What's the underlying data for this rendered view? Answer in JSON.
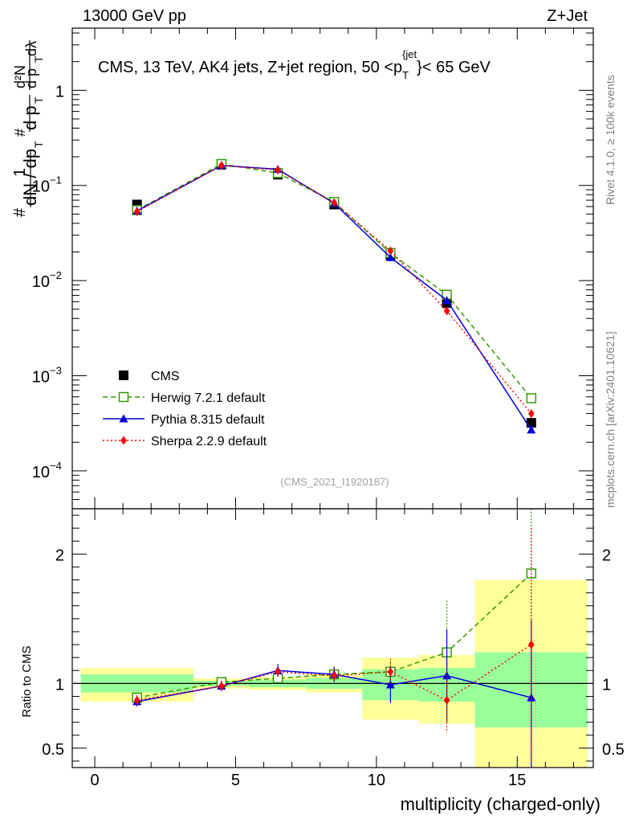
{
  "header": {
    "left": "13000 GeV pp",
    "right": "Z+Jet",
    "side_top": "Rivet 4.1.0, ≥ 100k events",
    "side_bottom": "mcplots.cern.ch [arXiv:2401.10621]"
  },
  "chart_data": {
    "type": "line",
    "title": "CMS, 13 TeV, AK4 jets, Z+jet region, 50 <p_T^{jet}< 65 GeV",
    "title_parts": {
      "main": "CMS, 13 TeV, AK4 jets, Z+jet region, 50 <p",
      "sub": "T",
      "sup": "{jet",
      "tail": "}< 65 GeV"
    },
    "analysis_id": "(CMS_2021_I1920187)",
    "xlabel": "multiplicity (charged-only)",
    "ylabel_main": "1/N dN/dp_T d²N/dp_T dλ",
    "ylabel_ratio": "Ratio to CMS",
    "xlim": [
      -0.8,
      17.7
    ],
    "ylim_main": [
      4e-05,
      4.5
    ],
    "ylim_ratio": [
      0.35,
      2.35
    ],
    "x_ticks": [
      {
        "value": 0,
        "label": "0"
      },
      {
        "value": 5,
        "label": "5"
      },
      {
        "value": 10,
        "label": "10"
      },
      {
        "value": 15,
        "label": "15"
      }
    ],
    "y_ticks_main": [
      {
        "value": 1,
        "label": "1"
      },
      {
        "value": 0.1,
        "label": "10",
        "exp": "−1"
      },
      {
        "value": 0.01,
        "label": "10",
        "exp": "−2"
      },
      {
        "value": 0.001,
        "label": "10",
        "exp": "−3"
      },
      {
        "value": 0.0001,
        "label": "10",
        "exp": "−4"
      }
    ],
    "y_ticks_ratio": [
      {
        "value": 0.5,
        "label": "0.5"
      },
      {
        "value": 1,
        "label": "1"
      },
      {
        "value": 2,
        "label": "2"
      }
    ],
    "bins": [
      {
        "lo": -0.5,
        "hi": 3.5,
        "x": 1.5
      },
      {
        "lo": 3.5,
        "hi": 5.5,
        "x": 4.5
      },
      {
        "lo": 5.5,
        "hi": 7.5,
        "x": 6.5
      },
      {
        "lo": 7.5,
        "hi": 9.5,
        "x": 8.5
      },
      {
        "lo": 9.5,
        "hi": 11.5,
        "x": 10.5
      },
      {
        "lo": 11.5,
        "hi": 13.5,
        "x": 12.5
      },
      {
        "lo": 13.5,
        "hi": 17.5,
        "x": 15.5
      }
    ],
    "band_green": [
      [
        0.93,
        1.07
      ],
      [
        0.98,
        1.02
      ],
      [
        0.97,
        1.03
      ],
      [
        0.96,
        1.04
      ],
      [
        0.87,
        1.11
      ],
      [
        0.86,
        1.12
      ],
      [
        0.66,
        1.24
      ]
    ],
    "band_yellow": [
      [
        0.86,
        1.12
      ],
      [
        0.96,
        1.04
      ],
      [
        0.95,
        1.05
      ],
      [
        0.93,
        1.07
      ],
      [
        0.72,
        1.2
      ],
      [
        0.69,
        1.22
      ],
      [
        0.3,
        1.8
      ]
    ],
    "series": [
      {
        "name": "CMS",
        "style": "data",
        "color": "#000000",
        "marker": "square",
        "x": [
          1.5,
          4.5,
          6.5,
          8.5,
          10.5,
          12.5,
          15.5
        ],
        "values": [
          0.063,
          0.165,
          0.13,
          0.063,
          0.0185,
          0.0058,
          0.00032
        ],
        "ratio": [
          1.0,
          1.0,
          1.0,
          1.0,
          1.0,
          1.0,
          1.0
        ]
      },
      {
        "name": "Herwig 7.2.1 default",
        "style": "dashed",
        "color": "#339900",
        "marker": "open-square",
        "x": [
          1.5,
          4.5,
          6.5,
          8.5,
          10.5,
          12.5,
          15.5
        ],
        "values": [
          0.055,
          0.168,
          0.135,
          0.067,
          0.0195,
          0.0071,
          0.00058
        ],
        "ratio": [
          0.89,
          1.01,
          1.04,
          1.07,
          1.09,
          1.24,
          1.85
        ],
        "ratio_err": [
          0.04,
          0.03,
          0.03,
          0.04,
          0.08,
          0.4,
          1.0
        ]
      },
      {
        "name": "Pythia 8.315 default",
        "style": "solid",
        "color": "#0000dd",
        "marker": "triangle",
        "x": [
          1.5,
          4.5,
          6.5,
          8.5,
          10.5,
          12.5,
          15.5
        ],
        "values": [
          0.054,
          0.162,
          0.148,
          0.065,
          0.0175,
          0.0062,
          0.00027
        ],
        "ratio": [
          0.86,
          0.98,
          1.1,
          1.07,
          0.99,
          1.06,
          0.89
        ],
        "ratio_err": [
          0.04,
          0.04,
          0.05,
          0.06,
          0.14,
          0.36,
          0.6
        ]
      },
      {
        "name": "Sherpa 2.2.9 default",
        "style": "dotted",
        "color": "#ff0000",
        "marker": "diamond",
        "x": [
          1.5,
          4.5,
          6.5,
          8.5,
          10.5,
          12.5,
          15.5
        ],
        "values": [
          0.053,
          0.162,
          0.145,
          0.066,
          0.0205,
          0.0048,
          0.0004
        ],
        "ratio": [
          0.87,
          0.98,
          1.09,
          1.06,
          1.09,
          0.87,
          1.3
        ],
        "ratio_err": [
          0.04,
          0.04,
          0.04,
          0.05,
          0.1,
          0.25,
          0.9
        ]
      }
    ]
  }
}
